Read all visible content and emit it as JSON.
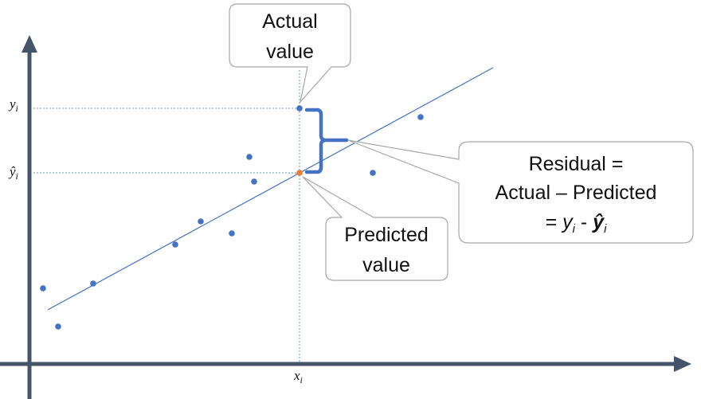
{
  "colors": {
    "axis": "#44546A",
    "points": "#4472C4",
    "predicted_point": "#ED7D31",
    "fit_line": "#4472C4",
    "guide_lines": "#5B9BD5",
    "brace": "#4472C4",
    "callout_border": "#A6A6A6"
  },
  "labels": {
    "y_actual": {
      "base": "y",
      "sub": "i"
    },
    "y_pred": {
      "base": "ŷ",
      "sub": "i"
    },
    "x_value": {
      "base": "x",
      "sub": "i"
    }
  },
  "callouts": {
    "actual": {
      "line1": "Actual",
      "line2": "value"
    },
    "predicted": {
      "line1": "Predicted",
      "line2": "value"
    },
    "residual": {
      "line1": "Residual =",
      "line2": "Actual – Predicted",
      "line3_prefix": "= ",
      "line3_y": "y",
      "line3_y_sub": "i",
      "line3_minus": " - ",
      "line3_yhat": "ŷ",
      "line3_yhat_sub": "i"
    }
  },
  "icons": {
    "x_axis_arrow": "arrow-right-icon",
    "y_axis_arrow": "arrow-up-icon",
    "brace": "curly-brace-icon"
  }
}
